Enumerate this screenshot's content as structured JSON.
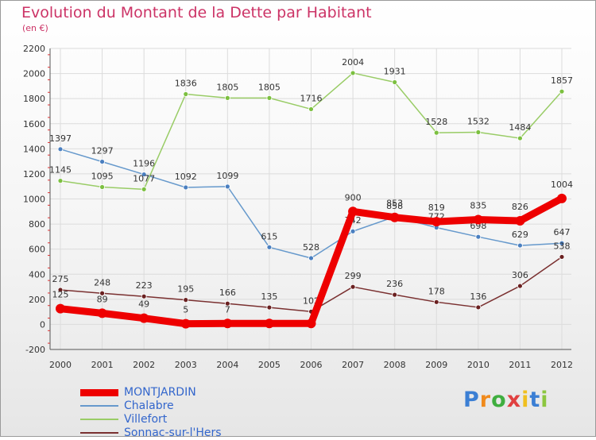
{
  "header": {
    "title": "Evolution du Montant de la Dette par Habitant",
    "subtitle": "(en €)"
  },
  "brand": {
    "text": "Proxiti",
    "letters": [
      "P",
      "r",
      "o",
      "x",
      "i",
      "t",
      "i"
    ],
    "colors": [
      "#3b7fd4",
      "#f08a1c",
      "#3fae3f",
      "#e04040",
      "#f0c020",
      "#3b7fd4",
      "#8cc63f"
    ]
  },
  "chart_data": {
    "type": "line",
    "x": [
      "2000",
      "2001",
      "2002",
      "2003",
      "2004",
      "2005",
      "2006",
      "2007",
      "2008",
      "2009",
      "2010",
      "2011",
      "2012"
    ],
    "ylim": [
      -200,
      2200
    ],
    "yticks": [
      "-200",
      "0",
      "200",
      "400",
      "600",
      "800",
      "1000",
      "1200",
      "1400",
      "1600",
      "1800",
      "2000",
      "2200"
    ],
    "grid": true,
    "legend_position": "bottom-left",
    "series": [
      {
        "name": "Chalabre",
        "color": "#6699cc",
        "values": [
          1397,
          1297,
          1196,
          1092,
          1099,
          615,
          528,
          742,
          858,
          772,
          698,
          629,
          647
        ],
        "labels": [
          "1397",
          "1297",
          "1196",
          "1092",
          "1099",
          "615",
          "528",
          "742",
          "858",
          "772",
          "698",
          "629",
          "647"
        ]
      },
      {
        "name": "Villefort",
        "color": "#99cc66",
        "values": [
          1145,
          1095,
          1077,
          1836,
          1805,
          1805,
          1716,
          2004,
          1931,
          1528,
          1532,
          1484,
          1857
        ],
        "labels": [
          "1145",
          "1095",
          "1077",
          "1836",
          "1805",
          "1805",
          "1716",
          "2004",
          "1931",
          "1528",
          "1532",
          "1484",
          "1857"
        ]
      },
      {
        "name": "Sonnac-sur-l'Hers",
        "color": "#7a3030",
        "values": [
          275,
          248,
          223,
          195,
          166,
          135,
          102,
          299,
          236,
          178,
          136,
          306,
          538
        ],
        "labels": [
          "275",
          "248",
          "223",
          "195",
          "166",
          "135",
          "102",
          "299",
          "236",
          "178",
          "136",
          "306",
          "538"
        ]
      },
      {
        "name": "MONTJARDIN",
        "color": "#ee0000",
        "values": [
          125,
          89,
          49,
          5,
          7,
          7,
          7,
          900,
          853,
          819,
          835,
          826,
          1004
        ],
        "labels": [
          "125",
          "89",
          "49",
          "5",
          "7",
          "",
          "",
          "900",
          "853",
          "819",
          "835",
          "826",
          "1004"
        ]
      }
    ],
    "legend": [
      {
        "name": "MONTJARDIN",
        "color": "#ee0000",
        "width": 9
      },
      {
        "name": "Chalabre",
        "color": "#6699cc",
        "width": 2
      },
      {
        "name": "Villefort",
        "color": "#99cc66",
        "width": 2
      },
      {
        "name": "Sonnac-sur-l'Hers",
        "color": "#7a3030",
        "width": 2
      }
    ]
  }
}
